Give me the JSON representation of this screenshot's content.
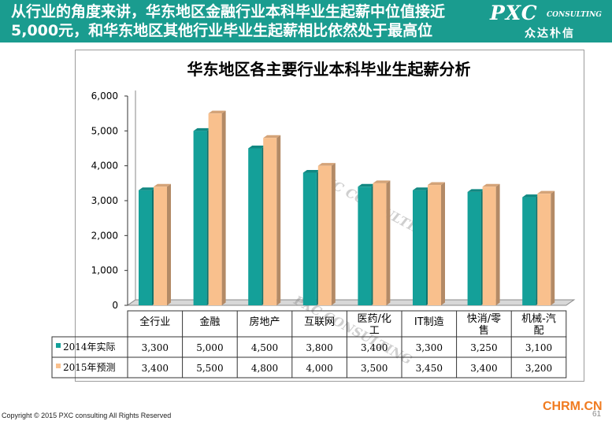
{
  "header": {
    "headline": "从行业的角度来讲，华东地区金融行业本科毕业生起薪中位值接近5,000元，和华东地区其他行业毕业生起薪相比依然处于最高位",
    "logo_main": "PXC",
    "logo_sub": "CONSULTING",
    "logo_cn": "众达朴信",
    "bg_color": "#1a9c8f"
  },
  "chart_data": {
    "type": "bar",
    "title": "华东地区各主要行业本科毕业生起薪分析",
    "categories": [
      "全行业",
      "金融",
      "房地产",
      "互联网",
      "医药/化工",
      "IT制造",
      "快消/零售",
      "机械-汽配"
    ],
    "series": [
      {
        "name": "2014年实际",
        "color": "#14a099",
        "values": [
          3300,
          5000,
          4500,
          3800,
          3400,
          3300,
          3250,
          3100
        ],
        "labels": [
          "3,300",
          "5,000",
          "4,500",
          "3,800",
          "3,400",
          "3,300",
          "3,250",
          "3,100"
        ]
      },
      {
        "name": "2015年预测",
        "color": "#f9c08d",
        "values": [
          3400,
          5500,
          4800,
          4000,
          3500,
          3450,
          3400,
          3200
        ],
        "labels": [
          "3,400",
          "5,500",
          "4,800",
          "4,000",
          "3,500",
          "3,450",
          "3,400",
          "3,200"
        ]
      }
    ],
    "ylim": [
      0,
      6000
    ],
    "yticks": [
      0,
      1000,
      2000,
      3000,
      4000,
      5000,
      6000
    ],
    "ytick_labels": [
      "0",
      "1,000",
      "2,000",
      "3,000",
      "4,000",
      "5,000",
      "6,000"
    ],
    "grid": false,
    "legend": "data-table"
  },
  "footer": {
    "copyright": "Copyright © 2015 PXC consulting All Rights Reserved",
    "brand": "CHRM.CN",
    "page": "61"
  }
}
